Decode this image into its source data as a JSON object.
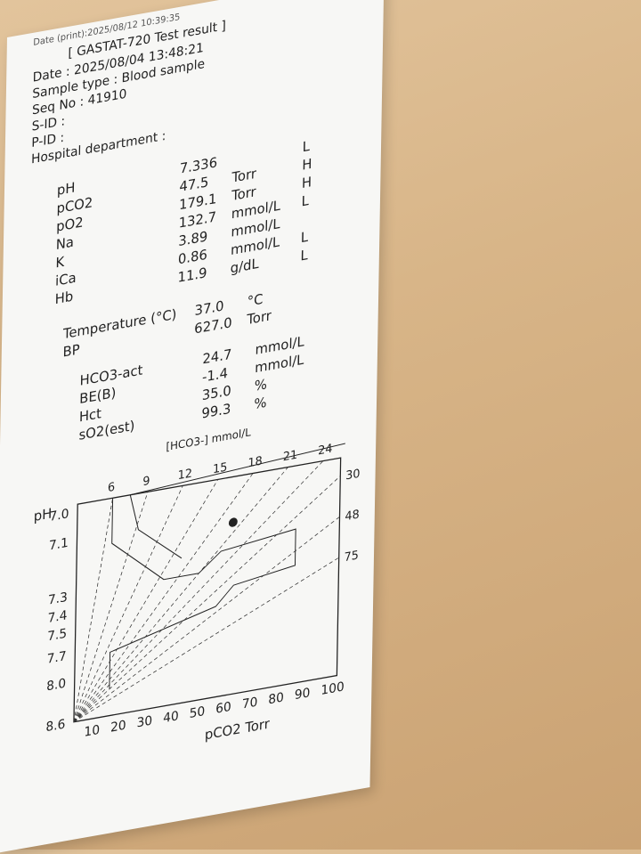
{
  "receipt": {
    "print_date": "Date (print):2025/08/12    10:39:35",
    "title": "[ GASTAT-720 Test result ]",
    "date": "Date : 2025/08/04 13:48:21",
    "sample_type": "Sample type : Blood sample",
    "seq_no": "Seq No : 41910",
    "s_id": "S-ID :",
    "p_id": "P-ID :",
    "department": "Hospital department :",
    "results": [
      {
        "name": "pH",
        "value": "7.336",
        "unit": "",
        "flag": "L"
      },
      {
        "name": "pCO2",
        "value": "47.5",
        "unit": "Torr",
        "flag": "H"
      },
      {
        "name": "pO2",
        "value": "179.1",
        "unit": "Torr",
        "flag": "H"
      },
      {
        "name": "Na",
        "value": "132.7",
        "unit": "mmol/L",
        "flag": "L"
      },
      {
        "name": "K",
        "value": "3.89",
        "unit": "mmol/L",
        "flag": ""
      },
      {
        "name": "iCa",
        "value": "0.86",
        "unit": "mmol/L",
        "flag": "L"
      },
      {
        "name": "Hb",
        "value": "11.9",
        "unit": "g/dL",
        "flag": "L"
      }
    ],
    "conditions": [
      {
        "name": "Temperature (°C)",
        "value": "37.0",
        "unit": "°C"
      },
      {
        "name": "BP",
        "value": "627.0",
        "unit": "Torr"
      }
    ],
    "calculated": [
      {
        "name": "HCO3-act",
        "value": "24.7",
        "unit": "mmol/L"
      },
      {
        "name": "BE(B)",
        "value": "-1.4",
        "unit": "mmol/L"
      },
      {
        "name": "Hct",
        "value": "35.0",
        "unit": "%"
      },
      {
        "name": "sO2(est)",
        "value": "99.3",
        "unit": "%"
      }
    ]
  },
  "chart_data": {
    "type": "scatter",
    "title": "",
    "top_axis_label": "[HCO3-] mmol/L",
    "top_ticks": [
      "6",
      "9",
      "12",
      "15",
      "18",
      "21",
      "24"
    ],
    "right_ticks": [
      "30",
      "48",
      "75"
    ],
    "ylabel": "pH",
    "y_ticks": [
      "7.0",
      "7.1",
      "7.3",
      "7.4",
      "7.5",
      "7.7",
      "8.0",
      "8.6"
    ],
    "xlabel": "pCO2 Torr",
    "x_ticks": [
      "10",
      "20",
      "30",
      "40",
      "50",
      "60",
      "70",
      "80",
      "90",
      "100"
    ],
    "points": [
      {
        "pCO2": 47.5,
        "pH": 7.336
      }
    ]
  }
}
